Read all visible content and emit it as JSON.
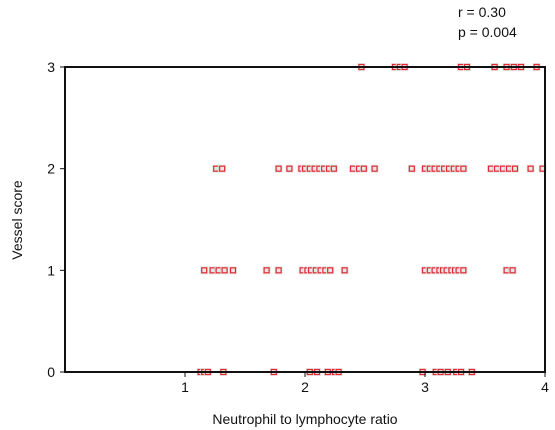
{
  "chart_data": {
    "type": "scatter",
    "title": "",
    "xlabel": "Neutrophil to lymphocyte ratio",
    "ylabel": "Vessel score",
    "xlim": [
      0,
      4
    ],
    "ylim": [
      0,
      3
    ],
    "x_ticks": [
      1,
      2,
      3,
      4
    ],
    "y_ticks": [
      0,
      1,
      2,
      3
    ],
    "tick_labels_x": [
      "1",
      "2",
      "3",
      "4"
    ],
    "tick_labels_y": [
      "0",
      "1",
      "2",
      "3"
    ],
    "grid": false,
    "annotations": [
      "r = 0.30",
      "p = 0.004"
    ],
    "marker_color": "#e0282f",
    "points": [
      {
        "x": 1.13,
        "y": 0
      },
      {
        "x": 1.16,
        "y": 0
      },
      {
        "x": 1.19,
        "y": 0
      },
      {
        "x": 1.32,
        "y": 0
      },
      {
        "x": 1.74,
        "y": 0
      },
      {
        "x": 2.04,
        "y": 0
      },
      {
        "x": 2.1,
        "y": 0
      },
      {
        "x": 2.19,
        "y": 0
      },
      {
        "x": 2.25,
        "y": 0
      },
      {
        "x": 2.28,
        "y": 0
      },
      {
        "x": 2.98,
        "y": 0
      },
      {
        "x": 3.09,
        "y": 0
      },
      {
        "x": 3.13,
        "y": 0
      },
      {
        "x": 3.19,
        "y": 0
      },
      {
        "x": 3.26,
        "y": 0
      },
      {
        "x": 3.3,
        "y": 0
      },
      {
        "x": 3.39,
        "y": 0
      },
      {
        "x": 1.16,
        "y": 1
      },
      {
        "x": 1.23,
        "y": 1
      },
      {
        "x": 1.28,
        "y": 1
      },
      {
        "x": 1.33,
        "y": 1
      },
      {
        "x": 1.4,
        "y": 1
      },
      {
        "x": 1.68,
        "y": 1
      },
      {
        "x": 1.78,
        "y": 1
      },
      {
        "x": 1.98,
        "y": 1
      },
      {
        "x": 2.02,
        "y": 1
      },
      {
        "x": 2.05,
        "y": 1
      },
      {
        "x": 2.09,
        "y": 1
      },
      {
        "x": 2.13,
        "y": 1
      },
      {
        "x": 2.17,
        "y": 1
      },
      {
        "x": 2.21,
        "y": 1
      },
      {
        "x": 2.33,
        "y": 1
      },
      {
        "x": 3.0,
        "y": 1
      },
      {
        "x": 3.04,
        "y": 1
      },
      {
        "x": 3.08,
        "y": 1
      },
      {
        "x": 3.12,
        "y": 1
      },
      {
        "x": 3.15,
        "y": 1
      },
      {
        "x": 3.18,
        "y": 1
      },
      {
        "x": 3.22,
        "y": 1
      },
      {
        "x": 3.25,
        "y": 1
      },
      {
        "x": 3.28,
        "y": 1
      },
      {
        "x": 3.32,
        "y": 1
      },
      {
        "x": 3.68,
        "y": 1
      },
      {
        "x": 3.73,
        "y": 1
      },
      {
        "x": 1.26,
        "y": 2
      },
      {
        "x": 1.31,
        "y": 2
      },
      {
        "x": 1.78,
        "y": 2
      },
      {
        "x": 1.87,
        "y": 2
      },
      {
        "x": 1.97,
        "y": 2
      },
      {
        "x": 2.0,
        "y": 2
      },
      {
        "x": 2.04,
        "y": 2
      },
      {
        "x": 2.08,
        "y": 2
      },
      {
        "x": 2.12,
        "y": 2
      },
      {
        "x": 2.16,
        "y": 2
      },
      {
        "x": 2.2,
        "y": 2
      },
      {
        "x": 2.24,
        "y": 2
      },
      {
        "x": 2.4,
        "y": 2
      },
      {
        "x": 2.45,
        "y": 2
      },
      {
        "x": 2.49,
        "y": 2
      },
      {
        "x": 2.58,
        "y": 2
      },
      {
        "x": 2.89,
        "y": 2
      },
      {
        "x": 3.0,
        "y": 2
      },
      {
        "x": 3.04,
        "y": 2
      },
      {
        "x": 3.08,
        "y": 2
      },
      {
        "x": 3.12,
        "y": 2
      },
      {
        "x": 3.16,
        "y": 2
      },
      {
        "x": 3.2,
        "y": 2
      },
      {
        "x": 3.24,
        "y": 2
      },
      {
        "x": 3.28,
        "y": 2
      },
      {
        "x": 3.32,
        "y": 2
      },
      {
        "x": 3.55,
        "y": 2
      },
      {
        "x": 3.6,
        "y": 2
      },
      {
        "x": 3.65,
        "y": 2
      },
      {
        "x": 3.7,
        "y": 2
      },
      {
        "x": 3.75,
        "y": 2
      },
      {
        "x": 3.88,
        "y": 2
      },
      {
        "x": 3.98,
        "y": 2
      },
      {
        "x": 2.47,
        "y": 3
      },
      {
        "x": 2.75,
        "y": 3
      },
      {
        "x": 2.79,
        "y": 3
      },
      {
        "x": 2.83,
        "y": 3
      },
      {
        "x": 3.3,
        "y": 3
      },
      {
        "x": 3.35,
        "y": 3
      },
      {
        "x": 3.58,
        "y": 3
      },
      {
        "x": 3.68,
        "y": 3
      },
      {
        "x": 3.74,
        "y": 3
      },
      {
        "x": 3.8,
        "y": 3
      },
      {
        "x": 3.93,
        "y": 3
      }
    ]
  }
}
